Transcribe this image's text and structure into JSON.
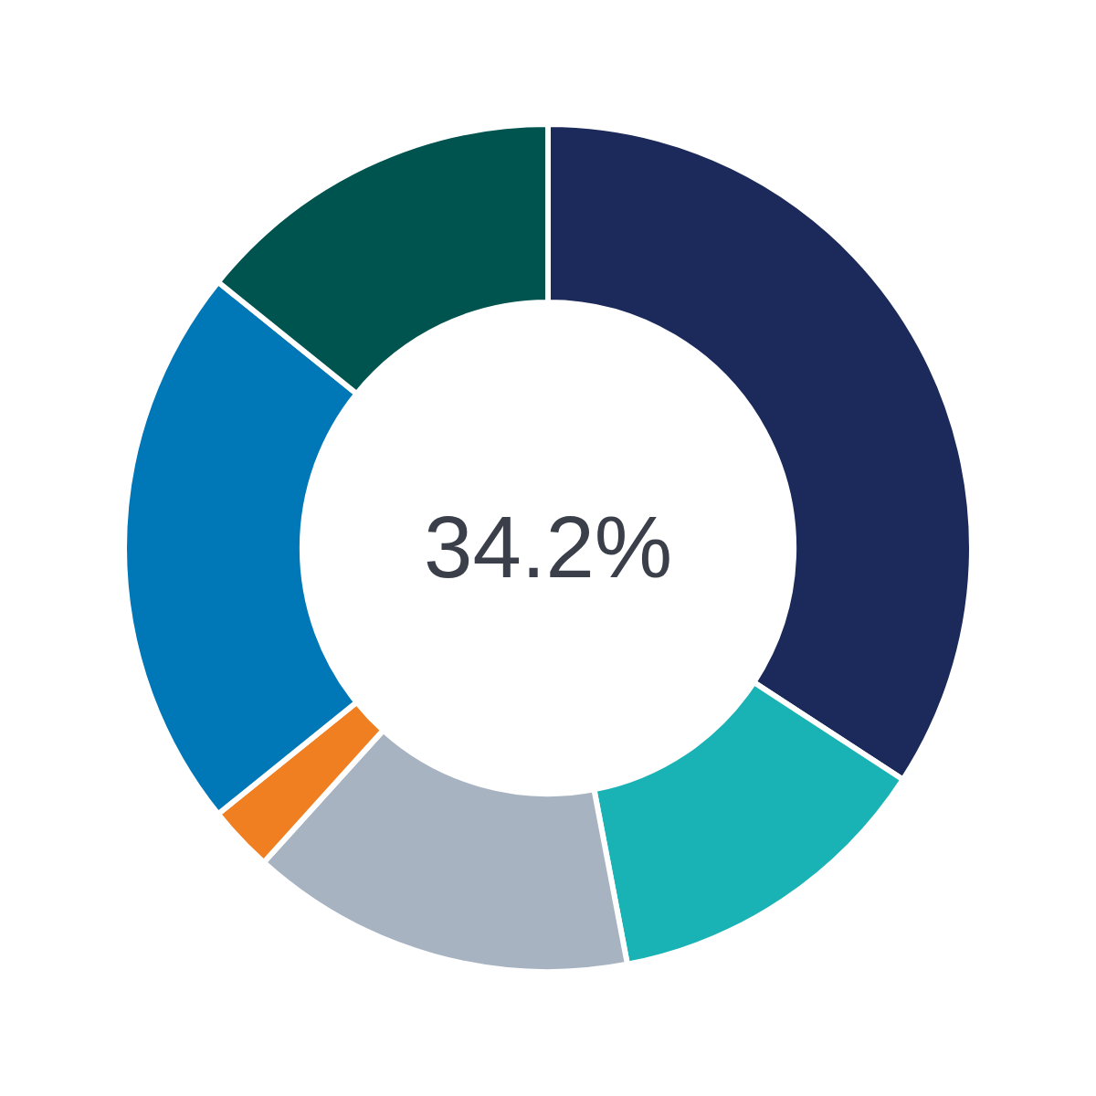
{
  "chart_data": {
    "type": "donut",
    "categories": [
      null,
      null,
      null,
      null,
      null,
      null
    ],
    "values": [
      34.2,
      12.8,
      14.7,
      2.5,
      21.6,
      14.2
    ],
    "colors": [
      "#1b2a5a",
      "#1ab3b5",
      "#a8b3c2",
      "#f07f22",
      "#0077b6",
      "#005450"
    ],
    "annotations": [
      "34.2%"
    ],
    "legend": false
  }
}
